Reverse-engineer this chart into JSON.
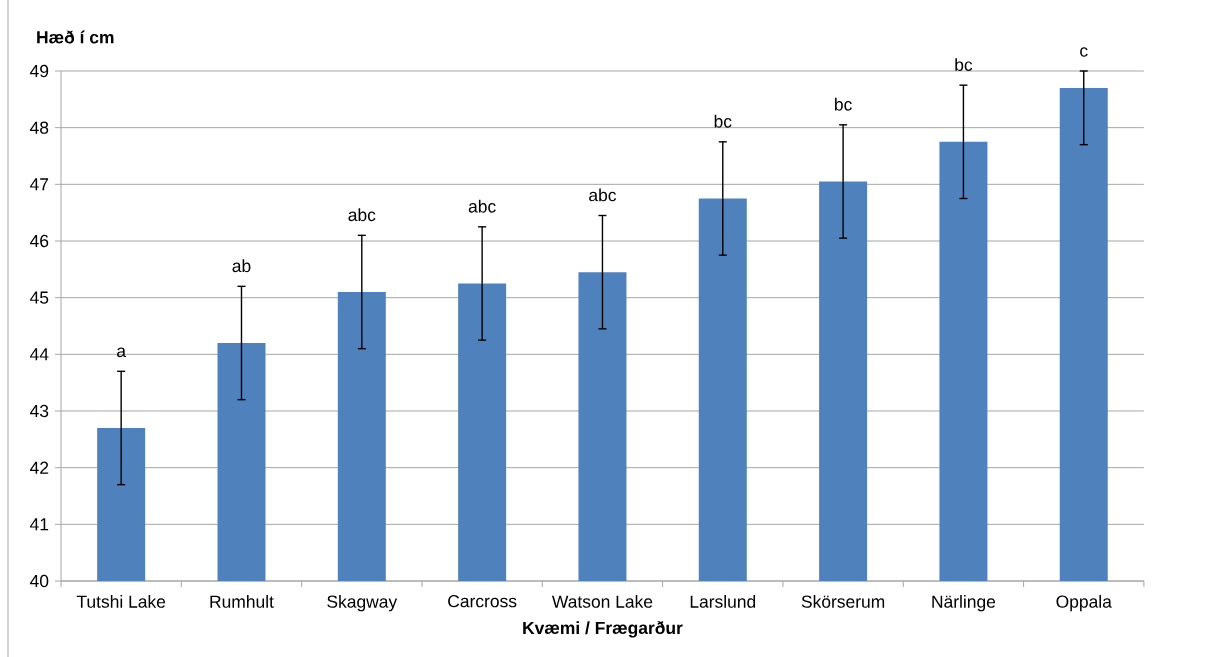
{
  "chart_data": {
    "type": "bar",
    "ylabel": "Hæð í cm",
    "xlabel": "Kvæmi / Frægarður",
    "categories": [
      "Tutshi Lake",
      "Rumhult",
      "Skagway",
      "Carcross",
      "Watson Lake",
      "Larslund",
      "Skörserum",
      "Närlinge",
      "Oppala"
    ],
    "values": [
      42.7,
      44.2,
      45.1,
      45.25,
      45.45,
      46.75,
      47.05,
      47.75,
      48.7
    ],
    "errors": [
      1,
      1,
      1,
      1,
      1,
      1,
      1,
      1,
      [
        47.7,
        49
      ]
    ],
    "color": "#4f81bd",
    "ylim": [
      40,
      49
    ],
    "yticks": [
      40,
      41,
      42,
      43,
      44,
      45,
      46,
      47,
      48,
      49
    ],
    "grid": "y",
    "annotations": [
      "a",
      "ab",
      "abc",
      "abc",
      "abc",
      "bc",
      "bc",
      "bc",
      "c"
    ]
  }
}
